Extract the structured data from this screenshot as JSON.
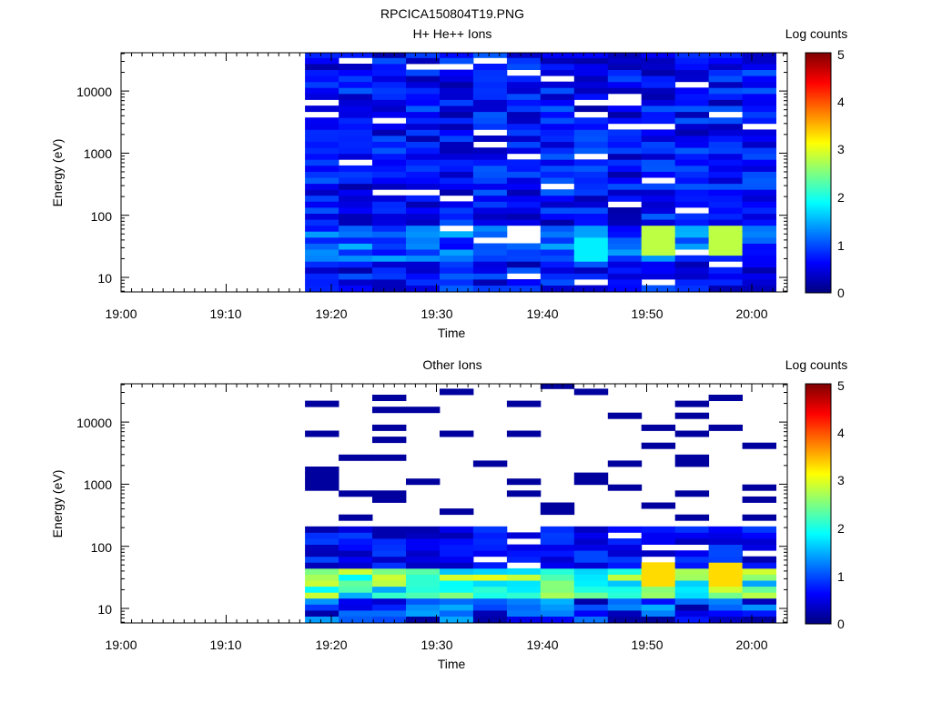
{
  "page_title": "RPCICA150804T19.PNG",
  "chart_data": [
    {
      "type": "heatmap",
      "title": "H+ He++ Ions",
      "xlabel": "Time",
      "ylabel": "Energy (eV)",
      "x_ticks": [
        "19:00",
        "19:10",
        "19:20",
        "19:30",
        "19:40",
        "19:50",
        "20:00"
      ],
      "y_ticks": [
        "10",
        "100",
        "1000",
        "10000"
      ],
      "xlim": [
        "19:00",
        "20:03"
      ],
      "y_scale": "log",
      "ylim": [
        6,
        43000
      ],
      "data_start": "19:17:30",
      "column_minutes": 3.2,
      "colorbar": {
        "label": "Log counts",
        "range": [
          0,
          5
        ],
        "ticks": [
          "0",
          "1",
          "2",
          "3",
          "4",
          "5"
        ]
      },
      "description": "Ion spectrogram from 19:17 to 20:02; mostly 0.3-1 log counts (blue) across energies, peaks of ~2.5-3 log counts near 30-50 eV around 19:50 and 20:00."
    },
    {
      "type": "heatmap",
      "title": "Other Ions",
      "xlabel": "Time",
      "ylabel": "Energy (eV)",
      "x_ticks": [
        "19:00",
        "19:10",
        "19:20",
        "19:30",
        "19:40",
        "19:50",
        "20:00"
      ],
      "y_ticks": [
        "10",
        "100",
        "1000",
        "10000"
      ],
      "xlim": [
        "19:00",
        "20:03"
      ],
      "y_scale": "log",
      "ylim": [
        6,
        43000
      ],
      "data_start": "19:17:30",
      "column_minutes": 3.2,
      "colorbar": {
        "label": "Log counts",
        "range": [
          0,
          5
        ],
        "ticks": [
          "0",
          "1",
          "2",
          "3",
          "4",
          "5"
        ]
      },
      "description": "Sparse counts above 200 eV; band of 1.5-3.5 log counts between ~15 and 40 eV; moderate counts 40-200 eV."
    }
  ]
}
